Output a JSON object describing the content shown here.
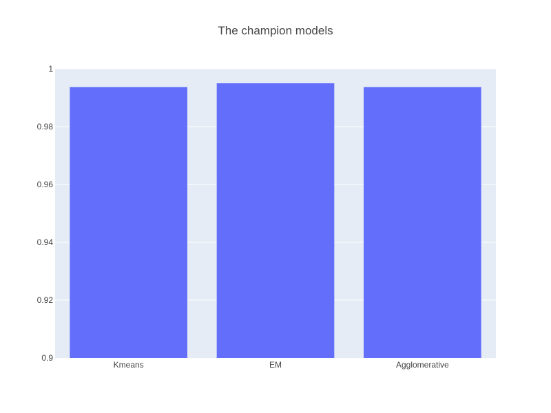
{
  "chart_data": {
    "type": "bar",
    "title": "The champion models",
    "xlabel": "",
    "ylabel": "",
    "categories": [
      "Kmeans",
      "EM",
      "Agglomerative"
    ],
    "values": [
      0.9937,
      0.995,
      0.9937
    ],
    "ylim": [
      0.9,
      1
    ],
    "yticks": [
      0.9,
      0.92,
      0.94,
      0.96,
      0.98,
      1
    ],
    "ytick_labels": [
      "0.9",
      "0.92",
      "0.94",
      "0.96",
      "0.98",
      "1"
    ],
    "grid": true,
    "colors": {
      "bar": "#636efa",
      "plot_background": "#e5ecf6",
      "grid": "#ffffff",
      "text": "#444444"
    }
  }
}
